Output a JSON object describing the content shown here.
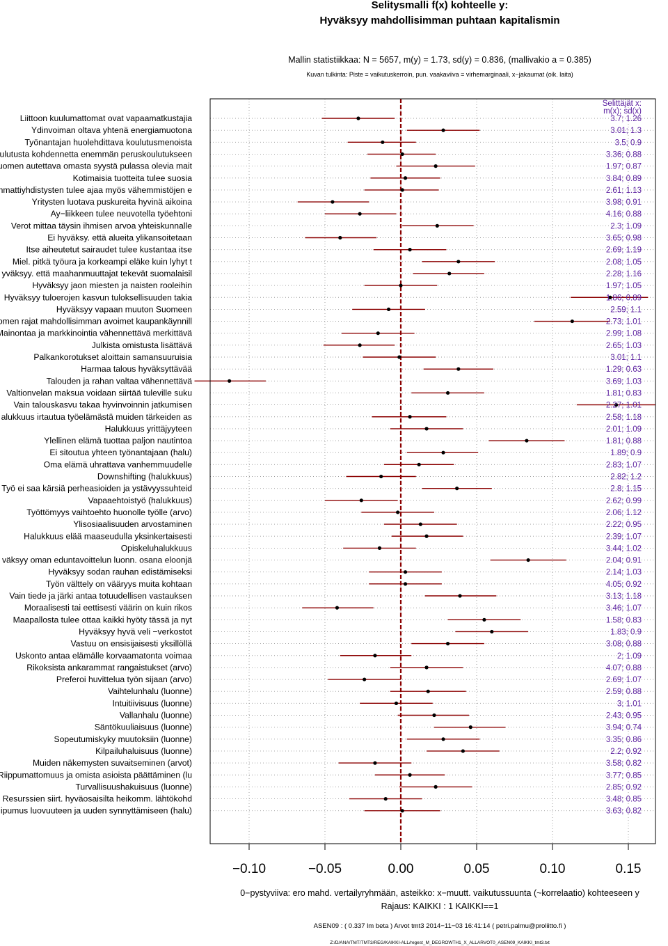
{
  "chart_data": {
    "type": "forest",
    "title_line1": "Selitysmalli f(x) kohteelle y:",
    "title_line2": "Hyväksyy mahdollisimman puhtaan kapitalismin",
    "model_stats": "Mallin statistiikkaa: N = 5657, m(y) = 1.73, sd(y) = 0.836, (mallivakio a = 0.385)",
    "interpretation": "Kuvan tulkinta: Piste = vaikutuskerroin, pun. vaakaviiva = virhemarginaali, x−jakaumat (oik. laita)",
    "right_header_line1": "Selittäjät x:",
    "right_header_line2": "m(x); sd(x)",
    "xlim": [
      -0.13,
      0.17
    ],
    "xticks": [
      -0.1,
      -0.05,
      0.0,
      0.05,
      0.1,
      0.15
    ],
    "xtick_labels": [
      "−0.10",
      "−0.05",
      "0.00",
      "0.05",
      "0.10",
      "0.15"
    ],
    "grid": true,
    "zero_line_color": "#8b0000",
    "ci_color": "#8b0000",
    "stat_color": "#5b1fa0",
    "xlabel": "0−pystyviiva: ero mahd. vertailyryhmään, asteikko: x−muutt. vaikutussuunta (~korrelaatio) kohteeseen y",
    "restriction": "Rajaus: KAIKKI : 1  KAIKKI==1",
    "footer1": "ASEN09 : ( 0.337 lm beta )  Arvot tmt3 2014−11−03 16:41:14 ( petri.palmu@proliitto.fi )",
    "footer2": "Z:/D/ANA/TMT/TMT3/REG/KAIKKI-ALL/regest_M_DEGROWTH1_X_ALLARVOT0_ASEN09_KAIKKI_tmt3.txt",
    "rows": [
      {
        "label": "Liittoon kuulumattomat ovat vapaamatkustajia",
        "est": -0.028,
        "lo": -0.052,
        "hi": -0.004,
        "stat": "3.7; 1.26"
      },
      {
        "label": "Ydinvoiman oltava yhtenä energiamuotona",
        "est": 0.028,
        "lo": 0.004,
        "hi": 0.052,
        "stat": "3.01; 1.3"
      },
      {
        "label": "Työnantajan huolehdittava koulutusmenoista",
        "est": -0.012,
        "lo": -0.035,
        "hi": 0.01,
        "stat": "3.5; 0.9"
      },
      {
        "label": "ulutusta kohdennetta enemmän peruskoulutukseen",
        "est": 0.001,
        "lo": -0.022,
        "hi": 0.023,
        "stat": "3.36; 0.88"
      },
      {
        "label": "uomen autettava omasta syystä pulassa olevia mait",
        "est": 0.023,
        "lo": -0.003,
        "hi": 0.049,
        "stat": "1.97; 0.87"
      },
      {
        "label": "Kotimaisia tuotteita tulee suosia",
        "est": 0.003,
        "lo": -0.02,
        "hi": 0.026,
        "stat": "3.84; 0.89"
      },
      {
        "label": "nmattiyhdistysten tulee ajaa myös vähemmistöjen e",
        "est": 0.001,
        "lo": -0.024,
        "hi": 0.025,
        "stat": "2.61; 1.13"
      },
      {
        "label": "Yritysten luotava puskureita hyvinä aikoina",
        "est": -0.045,
        "lo": -0.068,
        "hi": -0.021,
        "stat": "3.98; 0.91"
      },
      {
        "label": "Ay−liikkeen tulee neuvotella työehtoni",
        "est": -0.027,
        "lo": -0.05,
        "hi": -0.003,
        "stat": "4.16; 0.88"
      },
      {
        "label": "Verot mittaa täysin ihmisen arvoa yhteiskunnalle",
        "est": 0.024,
        "lo": 0.001,
        "hi": 0.048,
        "stat": "2.3; 1.09"
      },
      {
        "label": "Ei hyväksy. että alueita ylikansoitetaan",
        "est": -0.04,
        "lo": -0.063,
        "hi": -0.016,
        "stat": "3.65; 0.98"
      },
      {
        "label": "Itse aiheutetut sairaudet tulee kustantaa itse",
        "est": 0.006,
        "lo": -0.018,
        "hi": 0.03,
        "stat": "2.69; 1.19"
      },
      {
        "label": "Miel. pitkä työura ja korkeampi eläke kuin lyhyt t",
        "est": 0.038,
        "lo": 0.014,
        "hi": 0.062,
        "stat": "2.08; 1.05"
      },
      {
        "label": "yväksyy. että maahanmuuttajat tekevät suomalaisil",
        "est": 0.032,
        "lo": 0.008,
        "hi": 0.055,
        "stat": "2.28; 1.16"
      },
      {
        "label": "Hyväksyy jaon miesten ja naisten rooleihin",
        "est": 0.0,
        "lo": -0.024,
        "hi": 0.024,
        "stat": "1.97; 1.05"
      },
      {
        "label": "Hyväksyy tuloerojen kasvun tuloksellisuuden takia",
        "est": 0.138,
        "lo": 0.112,
        "hi": 0.163,
        "stat": "1.86; 0.89"
      },
      {
        "label": "Hyväksyy vapaan muuton Suomeen",
        "est": -0.008,
        "lo": -0.032,
        "hi": 0.016,
        "stat": "2.59; 1.1"
      },
      {
        "label": "omen rajat mahdollisimman avoimet kaupankäynnill",
        "est": 0.113,
        "lo": 0.088,
        "hi": 0.138,
        "stat": "2.73; 1.01"
      },
      {
        "label": "Mainontaa ja markkinointia vähennettävä merkittävä",
        "est": -0.015,
        "lo": -0.039,
        "hi": 0.009,
        "stat": "2.99; 1.08"
      },
      {
        "label": "Julkista omistusta lisättävä",
        "est": -0.027,
        "lo": -0.051,
        "hi": -0.004,
        "stat": "2.65; 1.03"
      },
      {
        "label": "Palkankorotukset aloittain samansuuruisia",
        "est": -0.001,
        "lo": -0.025,
        "hi": 0.023,
        "stat": "3.01; 1.1"
      },
      {
        "label": "Harmaa talous hyväksyttävää",
        "est": 0.038,
        "lo": 0.015,
        "hi": 0.061,
        "stat": "1.29; 0.63"
      },
      {
        "label": "Talouden ja rahan valtaa vähennettävä",
        "est": -0.113,
        "lo": -0.136,
        "hi": -0.089,
        "stat": "3.69; 1.03"
      },
      {
        "label": "Valtionvelan maksua voidaan siirtää tuleville suku",
        "est": 0.031,
        "lo": 0.007,
        "hi": 0.055,
        "stat": "1.81; 0.83"
      },
      {
        "label": "Vain talouskasvu takaa hyvinvoinnin jatkumisen",
        "est": 0.142,
        "lo": 0.116,
        "hi": 0.168,
        "stat": "2.27; 1.01"
      },
      {
        "label": "alukkuus irtautua työelämästä muiden tärkeiden as",
        "est": 0.006,
        "lo": -0.019,
        "hi": 0.03,
        "stat": "2.58; 1.18"
      },
      {
        "label": "Halukkuus yrittäjyyteen",
        "est": 0.017,
        "lo": -0.007,
        "hi": 0.041,
        "stat": "2.01; 1.09"
      },
      {
        "label": "Ylellinen elämä tuottaa paljon nautintoa",
        "est": 0.083,
        "lo": 0.058,
        "hi": 0.108,
        "stat": "1.81; 0.88"
      },
      {
        "label": "Ei sitoutua yhteen työnantajaan (halu)",
        "est": 0.028,
        "lo": 0.004,
        "hi": 0.051,
        "stat": "1.89; 0.9"
      },
      {
        "label": "Oma elämä uhrattava vanhemmuudelle",
        "est": 0.012,
        "lo": -0.011,
        "hi": 0.035,
        "stat": "2.83; 1.07"
      },
      {
        "label": "Downshifting (halukkuus)",
        "est": -0.013,
        "lo": -0.036,
        "hi": 0.01,
        "stat": "2.82; 1.2"
      },
      {
        "label": "Työ ei saa kärsiä perheasioiden ja ystävyyssuhteid",
        "est": 0.037,
        "lo": 0.014,
        "hi": 0.06,
        "stat": "2.8; 1.15"
      },
      {
        "label": "Vapaaehtoistyö (halukkuus)",
        "est": -0.026,
        "lo": -0.05,
        "hi": -0.002,
        "stat": "2.62; 0.99"
      },
      {
        "label": "Työttömyys vaihtoehto huonolle työlle (arvo)",
        "est": -0.002,
        "lo": -0.026,
        "hi": 0.022,
        "stat": "2.06; 1.12"
      },
      {
        "label": "Ylisosiaalisuuden arvostaminen",
        "est": 0.013,
        "lo": -0.011,
        "hi": 0.037,
        "stat": "2.22; 0.95"
      },
      {
        "label": "Halukkuus elää maaseudulla yksinkertaisesti",
        "est": 0.017,
        "lo": -0.006,
        "hi": 0.041,
        "stat": "2.39; 1.07"
      },
      {
        "label": "Opiskeluhalukkuus",
        "est": -0.014,
        "lo": -0.038,
        "hi": 0.01,
        "stat": "3.44; 1.02"
      },
      {
        "label": "väksyy oman eduntavoittelun luonn. osana eloonjä",
        "est": 0.084,
        "lo": 0.059,
        "hi": 0.109,
        "stat": "2.04; 0.91"
      },
      {
        "label": "Hyväksyy sodan rauhan edistämiseksi",
        "est": 0.003,
        "lo": -0.021,
        "hi": 0.027,
        "stat": "2.14; 1.03"
      },
      {
        "label": "Työn välttely on vääryys muita kohtaan",
        "est": 0.003,
        "lo": -0.021,
        "hi": 0.027,
        "stat": "4.05; 0.92"
      },
      {
        "label": "Vain tiede ja järki antaa totuudellisen vastauksen",
        "est": 0.039,
        "lo": 0.016,
        "hi": 0.063,
        "stat": "3.13; 1.18"
      },
      {
        "label": "Moraalisesti tai eettisesti väärin on kuin rikos",
        "est": -0.042,
        "lo": -0.065,
        "hi": -0.018,
        "stat": "3.46; 1.07"
      },
      {
        "label": "Maapallosta tulee ottaa kaikki hyöty tässä ja nyt",
        "est": 0.055,
        "lo": 0.031,
        "hi": 0.079,
        "stat": "1.58; 0.83"
      },
      {
        "label": "Hyväksyy hyvä veli −verkostot",
        "est": 0.06,
        "lo": 0.036,
        "hi": 0.084,
        "stat": "1.83; 0.9"
      },
      {
        "label": "Vastuu on ensisijaisesti yksillöllä",
        "est": 0.031,
        "lo": 0.007,
        "hi": 0.055,
        "stat": "3.08; 0.88"
      },
      {
        "label": "Uskonto antaa elämälle korvaamatonta voimaa",
        "est": -0.017,
        "lo": -0.04,
        "hi": 0.007,
        "stat": "2; 1.09"
      },
      {
        "label": "Rikoksista ankarammat rangaistukset (arvo)",
        "est": 0.017,
        "lo": -0.007,
        "hi": 0.041,
        "stat": "4.07; 0.88"
      },
      {
        "label": "Preferoi huvittelua työn sijaan (arvo)",
        "est": -0.024,
        "lo": -0.048,
        "hi": 0.0,
        "stat": "2.69; 1.07"
      },
      {
        "label": "Vaihtelunhalu (luonne)",
        "est": 0.018,
        "lo": -0.007,
        "hi": 0.043,
        "stat": "2.59; 0.88"
      },
      {
        "label": "Intuitiivisuus (luonne)",
        "est": -0.003,
        "lo": -0.027,
        "hi": 0.021,
        "stat": "3; 1.01"
      },
      {
        "label": "Vallanhalu (luonne)",
        "est": 0.022,
        "lo": -0.002,
        "hi": 0.045,
        "stat": "2.43; 0.95"
      },
      {
        "label": "Säntökuuliaisuus (luonne)",
        "est": 0.046,
        "lo": 0.022,
        "hi": 0.069,
        "stat": "3.94; 0.74"
      },
      {
        "label": "Sopeutumiskyky muutoksiin (luonne)",
        "est": 0.028,
        "lo": 0.004,
        "hi": 0.052,
        "stat": "3.35; 0.86"
      },
      {
        "label": "Kilpailuhaluisuus (luonne)",
        "est": 0.041,
        "lo": 0.017,
        "hi": 0.065,
        "stat": "2.2; 0.92"
      },
      {
        "label": "Muiden näkemysten suvaitseminen (arvot)",
        "est": -0.017,
        "lo": -0.041,
        "hi": 0.007,
        "stat": "3.58; 0.82"
      },
      {
        "label": "Riippumattomuus ja omista asioista päättäminen (lu",
        "est": 0.006,
        "lo": -0.017,
        "hi": 0.029,
        "stat": "3.77; 0.85"
      },
      {
        "label": "Turvallisuushakuisuus (luonne)",
        "est": 0.023,
        "lo": -0.001,
        "hi": 0.047,
        "stat": "2.85; 0.92"
      },
      {
        "label": "Resurssien siirt. hyväosaisilta heikomm. lähtökohd",
        "est": -0.01,
        "lo": -0.034,
        "hi": 0.014,
        "stat": "3.48; 0.85"
      },
      {
        "label": "ipumus luovuuteen ja uuden synnyttämiseen (halu)",
        "est": 0.001,
        "lo": -0.024,
        "hi": 0.026,
        "stat": "3.63; 0.82"
      }
    ]
  }
}
